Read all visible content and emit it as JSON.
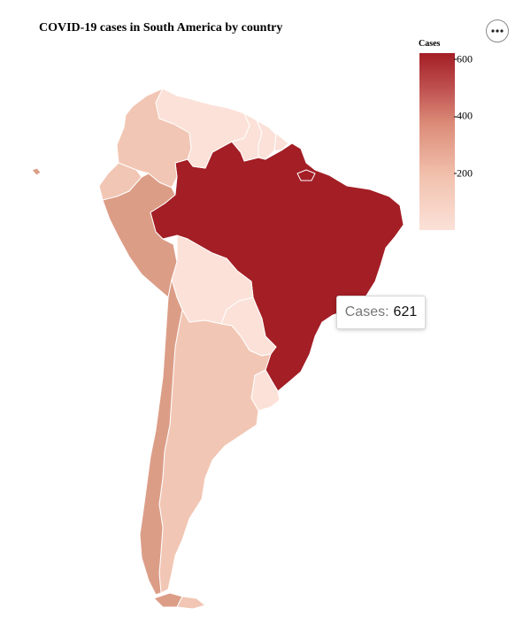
{
  "title": "COVID-19 cases in South America by country",
  "menu": {
    "icon": "more-horizontal-icon"
  },
  "legend": {
    "title": "Cases",
    "ticks": [
      "600",
      "400",
      "200"
    ],
    "tick_values": [
      600,
      400,
      200
    ],
    "min_color": "#fbe1d8",
    "max_color": "#a31e25",
    "domain": [
      0,
      621
    ]
  },
  "tooltip": {
    "label": "Cases:",
    "value": "621"
  },
  "colors": {
    "very_light": "#fbe1d8",
    "light": "#f2c6b4",
    "medium": "#dc9d87",
    "dark": "#a31e25"
  },
  "regions": [
    {
      "name": "Brazil",
      "value": 621,
      "shade": "dark"
    },
    {
      "name": "Peru",
      "shade": "medium"
    },
    {
      "name": "Chile",
      "shade": "medium"
    },
    {
      "name": "Argentina",
      "shade": "light"
    },
    {
      "name": "Colombia",
      "shade": "light"
    },
    {
      "name": "Ecuador",
      "shade": "light"
    },
    {
      "name": "Venezuela",
      "shade": "very_light"
    },
    {
      "name": "Guyana",
      "shade": "very_light"
    },
    {
      "name": "Suriname",
      "shade": "very_light"
    },
    {
      "name": "French Guiana",
      "shade": "very_light"
    },
    {
      "name": "Bolivia",
      "shade": "very_light"
    },
    {
      "name": "Paraguay",
      "shade": "very_light"
    },
    {
      "name": "Uruguay",
      "shade": "very_light"
    },
    {
      "name": "Galapagos",
      "shade": "medium"
    }
  ]
}
